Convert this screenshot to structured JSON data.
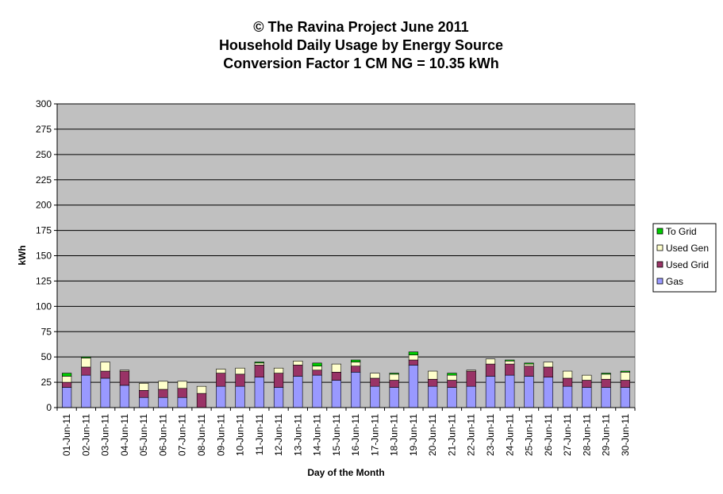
{
  "chart_data": {
    "type": "bar",
    "stacked": true,
    "title_lines": [
      "© The Ravina Project June 2011",
      "Household Daily Usage by Energy Source",
      "Conversion Factor 1 CM NG = 10.35 kWh"
    ],
    "xlabel": "Day of the Month",
    "ylabel": "kWh",
    "ylim": [
      0,
      300
    ],
    "yticks": [
      0,
      25,
      50,
      75,
      100,
      125,
      150,
      175,
      200,
      225,
      250,
      275,
      300
    ],
    "grid": true,
    "legend_position": "right",
    "categories": [
      "01-Jun-11",
      "02-Jun-11",
      "03-Jun-11",
      "04-Jun-11",
      "05-Jun-11",
      "06-Jun-11",
      "07-Jun-11",
      "08-Jun-11",
      "09-Jun-11",
      "10-Jun-11",
      "11-Jun-11",
      "12-Jun-11",
      "13-Jun-11",
      "14-Jun-11",
      "15-Jun-11",
      "16-Jun-11",
      "17-Jun-11",
      "18-Jun-11",
      "19-Jun-11",
      "20-Jun-11",
      "21-Jun-11",
      "22-Jun-11",
      "23-Jun-11",
      "24-Jun-11",
      "25-Jun-11",
      "26-Jun-11",
      "27-Jun-11",
      "28-Jun-11",
      "29-Jun-11",
      "30-Jun-11"
    ],
    "series": [
      {
        "name": "Gas",
        "color": "#9999ff",
        "values": [
          20,
          32,
          29,
          22,
          10,
          10,
          10,
          0,
          21,
          21,
          30,
          20,
          31,
          32,
          27,
          35,
          21,
          20,
          42,
          21,
          20,
          21,
          31,
          32,
          31,
          30,
          21,
          20,
          20,
          20
        ]
      },
      {
        "name": "Used Grid",
        "color": "#993366",
        "values": [
          5,
          8,
          7,
          14,
          7,
          8,
          9,
          14,
          13,
          12,
          12,
          14,
          11,
          5,
          8,
          6,
          8,
          7,
          5,
          7,
          7,
          15,
          12,
          11,
          10,
          10,
          8,
          7,
          8,
          7
        ]
      },
      {
        "name": "Used Gen",
        "color": "#ffffcc",
        "values": [
          6,
          9,
          9,
          1,
          7,
          8,
          7,
          7,
          4,
          6,
          2,
          5,
          4,
          4,
          8,
          4,
          5,
          6,
          5,
          8,
          5,
          1,
          5,
          3,
          2,
          5,
          7,
          5,
          5,
          8
        ]
      },
      {
        "name": "To Grid",
        "color": "#00cc00",
        "values": [
          3,
          1,
          0,
          0,
          0,
          0,
          0,
          0,
          0,
          0,
          1,
          0,
          0,
          3,
          0,
          2,
          0,
          1,
          3,
          0,
          2,
          0,
          0,
          1,
          1,
          0,
          0,
          0,
          1,
          1
        ]
      }
    ],
    "legend_order": [
      "To Grid",
      "Used Gen",
      "Used Grid",
      "Gas"
    ]
  }
}
